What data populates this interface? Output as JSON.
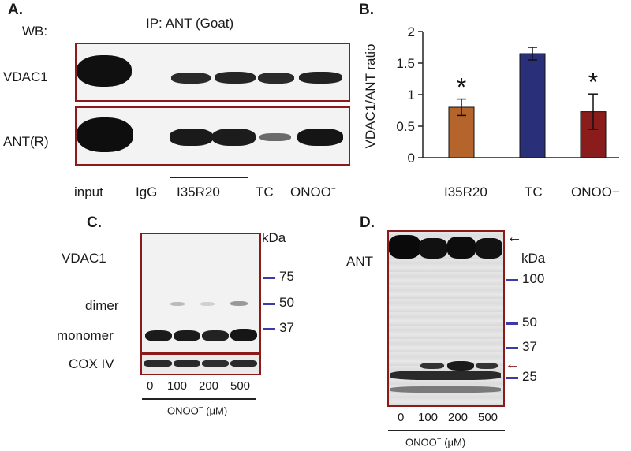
{
  "panelA": {
    "label": "A.",
    "wb": "WB:",
    "ip": "IP: ANT (Goat)",
    "row1": "VDAC1",
    "row2": "ANT(R)",
    "lanes": [
      "input",
      "IgG",
      "I35R20",
      "TC",
      "ONOO"
    ],
    "lane_sup": "−"
  },
  "panelB": {
    "label": "B.",
    "ylabel": "VDAC1/ANT ratio",
    "yticks": [
      "0",
      "0.5",
      "1",
      "1.5",
      "2"
    ],
    "sig": "*"
  },
  "chart_data": {
    "type": "bar",
    "categories": [
      "I35R20",
      "TC",
      "ONOO−"
    ],
    "values": [
      0.8,
      1.65,
      0.73
    ],
    "errors": [
      0.13,
      0.1,
      0.28
    ],
    "significant": [
      true,
      false,
      true
    ],
    "colors": [
      "#b5652b",
      "#2a2f7a",
      "#8a1c1c"
    ],
    "ylabel": "VDAC1/ANT ratio",
    "ylim": [
      0,
      2
    ]
  },
  "panelC": {
    "label": "C.",
    "kda": "kDa",
    "vdac": "VDAC1",
    "dimer": "dimer",
    "monomer": "monomer",
    "cox": "COX IV",
    "markers": [
      "75",
      "50",
      "37"
    ],
    "doses": [
      "0",
      "100",
      "200",
      "500"
    ],
    "treatment": "ONOO",
    "unit": "(μM)",
    "sup": "−"
  },
  "panelD": {
    "label": "D.",
    "kda": "kDa",
    "ant": "ANT",
    "markers": [
      "100",
      "50",
      "37",
      "25"
    ],
    "doses": [
      "0",
      "100",
      "200",
      "500"
    ],
    "treatment": "ONOO",
    "unit": "(μM)",
    "sup": "−"
  }
}
